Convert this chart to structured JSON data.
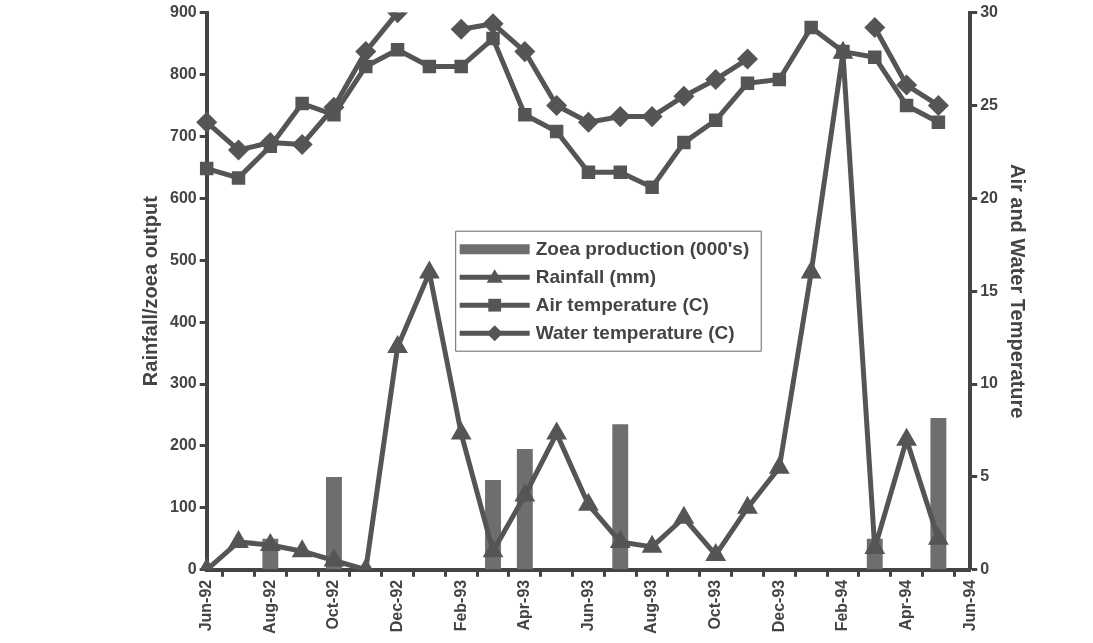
{
  "chart_data": {
    "type": "line",
    "categories": [
      "Jun-92",
      null,
      "Aug-92",
      null,
      "Oct-92",
      null,
      "Dec-92",
      null,
      "Feb-93",
      null,
      "Apr-93",
      null,
      "Jun-93",
      null,
      "Aug-93",
      null,
      "Oct-93",
      null,
      "Dec-93",
      null,
      "Feb-94",
      null,
      "Apr-94",
      null,
      "Jun-94"
    ],
    "ylabel": "Rainfall/zoea output",
    "y2label": "Air and Water Temperature",
    "ylim": [
      0,
      900
    ],
    "yticks": [
      0,
      100,
      200,
      300,
      400,
      500,
      600,
      700,
      800,
      900
    ],
    "y2lim": [
      0,
      30
    ],
    "y2ticks": [
      0,
      5,
      10,
      15,
      20,
      25,
      30
    ],
    "grid": false,
    "legend": "center",
    "line_style": "solid",
    "series": [
      {
        "name": "Zoea production (000's)",
        "type": "bar",
        "color": "#6e6e6e",
        "values": [
          null,
          null,
          50,
          null,
          150,
          null,
          null,
          null,
          null,
          145,
          195,
          null,
          null,
          235,
          null,
          null,
          null,
          null,
          null,
          null,
          null,
          50,
          null,
          245,
          null
        ]
      },
      {
        "name": "Rainfall (mm)",
        "marker": "triangle",
        "color": "#555555",
        "values": [
          0,
          45,
          40,
          30,
          15,
          0,
          360,
          480,
          220,
          30,
          120,
          220,
          105,
          45,
          37,
          84,
          24,
          100,
          165,
          480,
          835,
          35,
          210,
          50,
          null
        ]
      },
      {
        "name": "Air temperature (C)",
        "marker": "square",
        "axis": "y2",
        "color": "#555555",
        "values": [
          21.6,
          21.1,
          22.8,
          25.1,
          24.5,
          27.1,
          28.0,
          27.1,
          27.1,
          28.6,
          24.5,
          23.6,
          21.4,
          21.4,
          20.6,
          23.0,
          24.2,
          26.2,
          26.4,
          29.2,
          27.9,
          27.6,
          25.0,
          24.1,
          null
        ]
      },
      {
        "name": "Water temperature (C)",
        "marker": "diamond",
        "axis": "y2",
        "color": "#555555",
        "values": [
          24.1,
          22.6,
          23.0,
          22.9,
          24.9,
          27.9,
          30.0,
          null,
          29.1,
          29.4,
          27.9,
          25.0,
          24.1,
          24.4,
          24.4,
          25.5,
          26.4,
          27.5,
          null,
          null,
          null,
          29.2,
          26.1,
          25.0,
          null
        ]
      }
    ]
  }
}
